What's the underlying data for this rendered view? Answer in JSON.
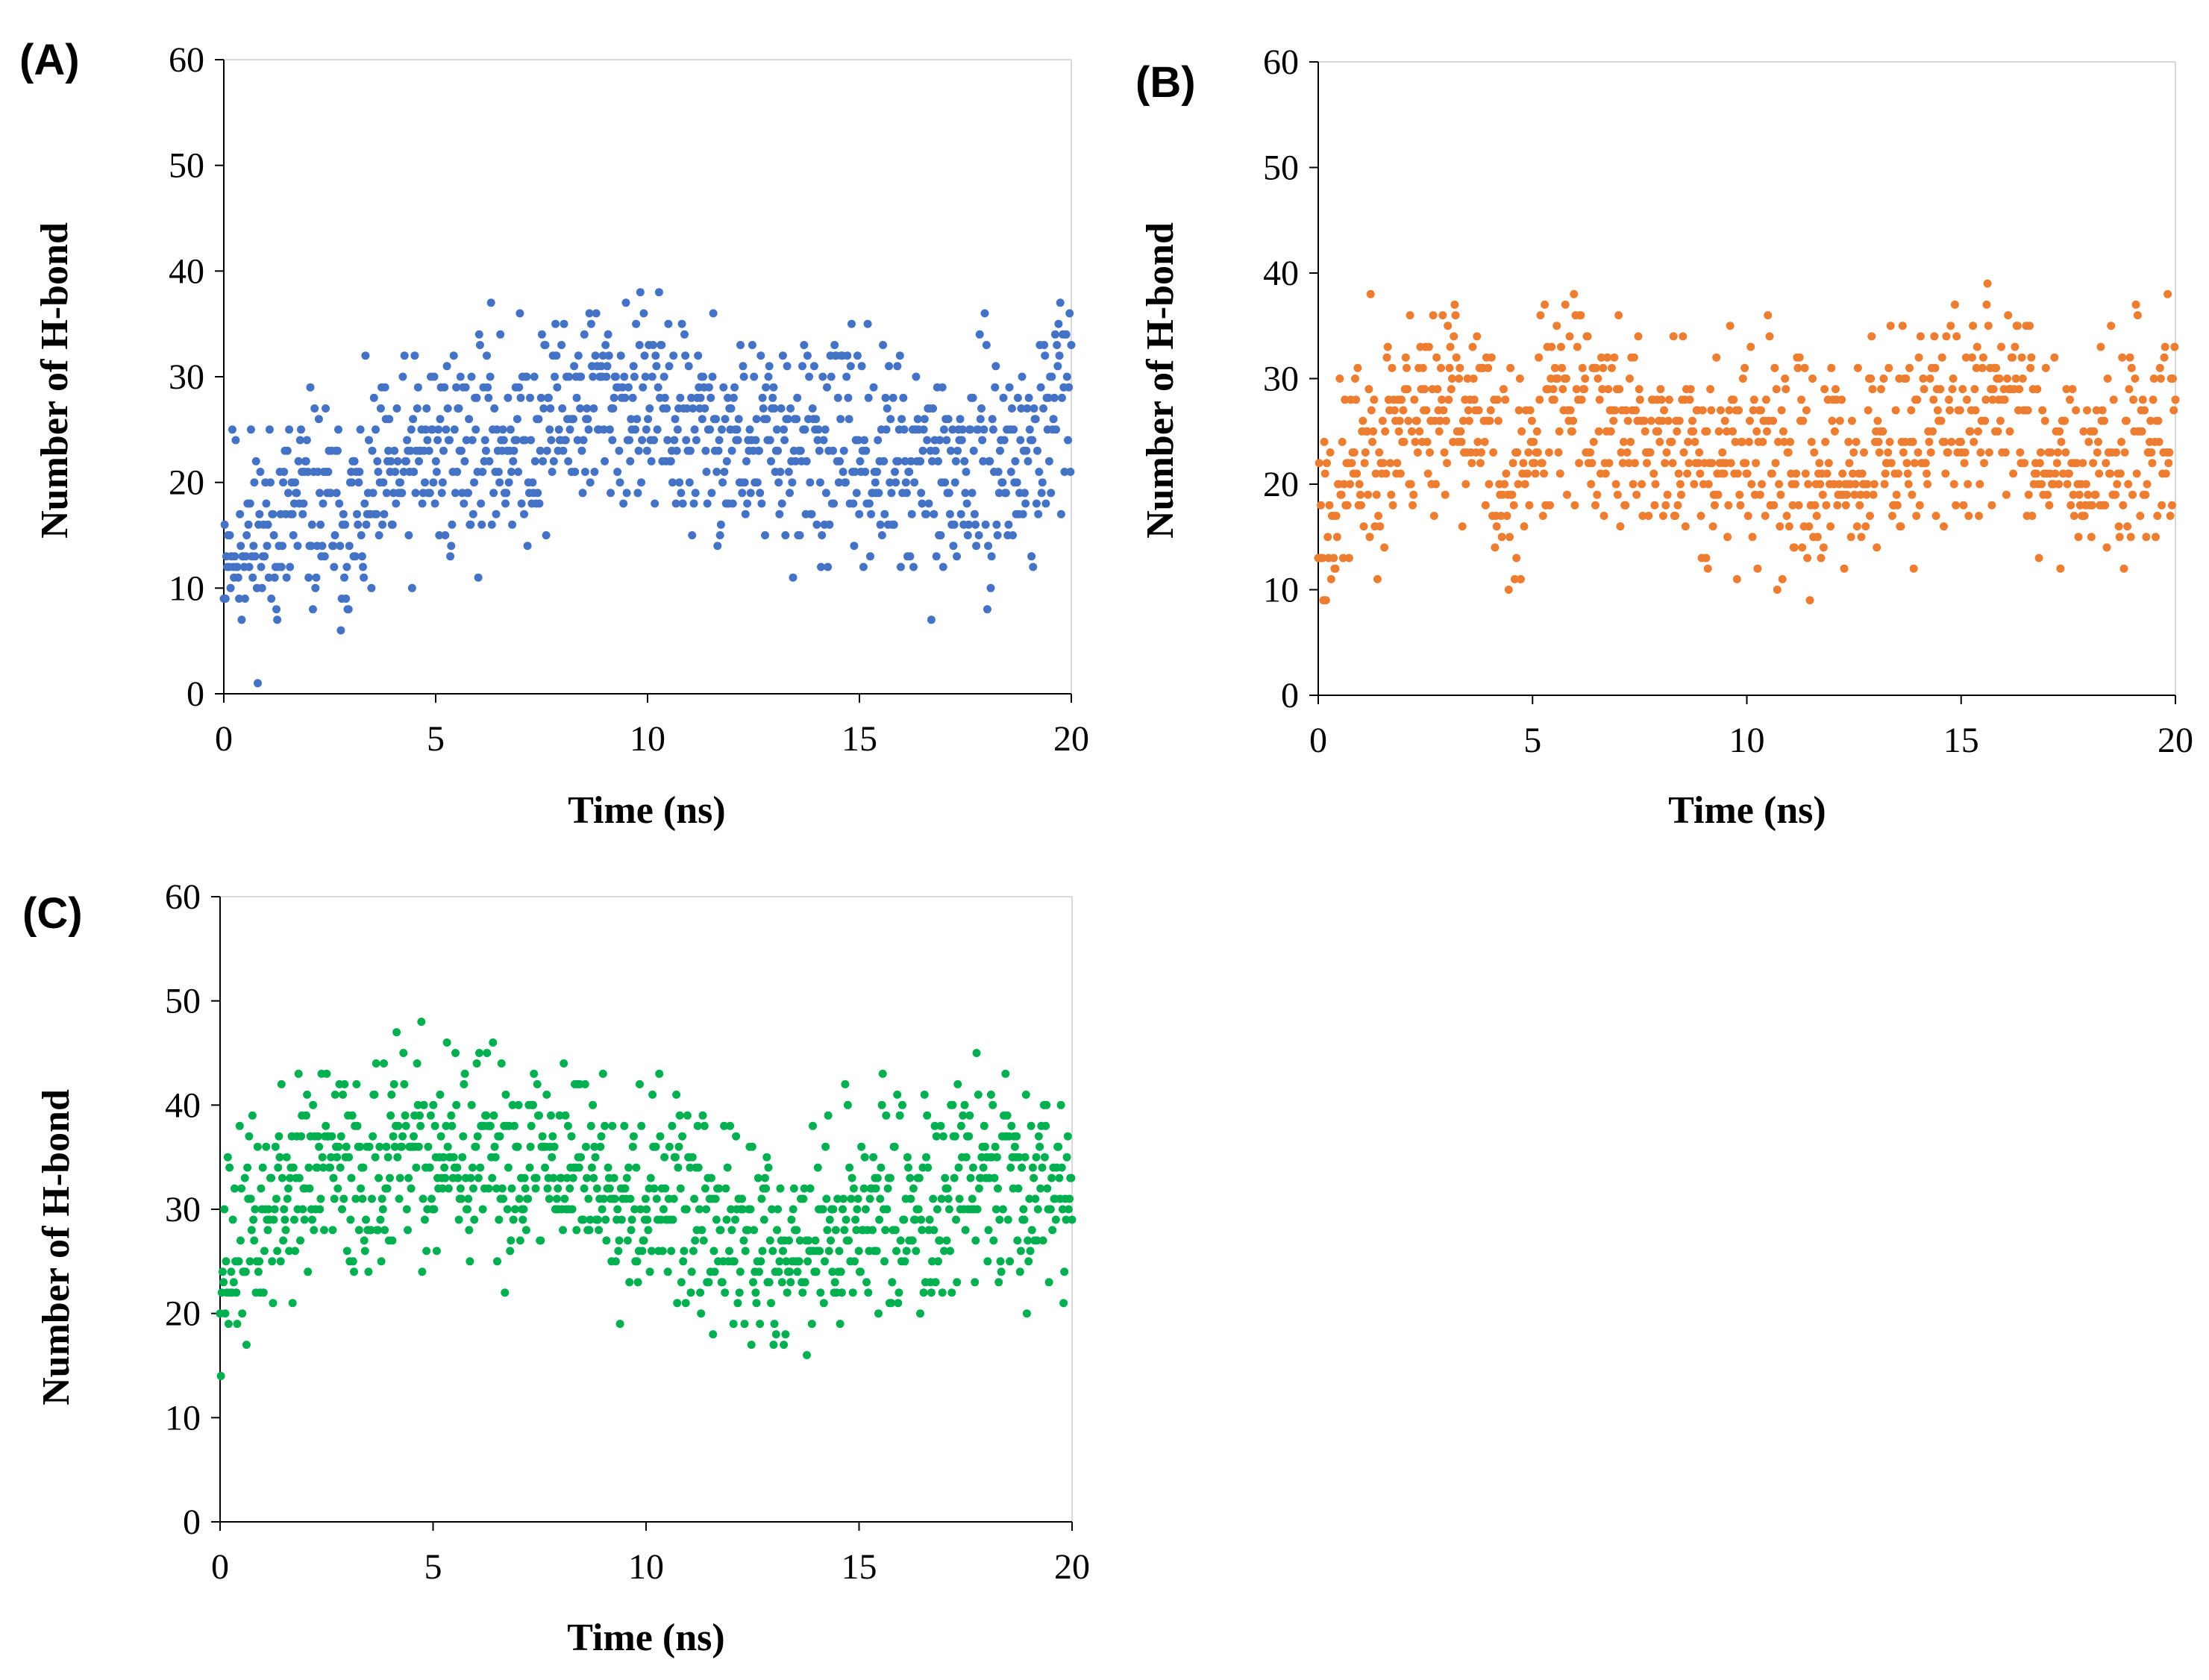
{
  "chart_data": [
    {
      "panel_label": "(A)",
      "type": "scatter",
      "color": "#4472C4",
      "xlabel": "Time (ns)",
      "ylabel": "Number of H-bond",
      "xlim": [
        0,
        20
      ],
      "ylim": [
        0,
        60
      ],
      "xticks": [
        "0",
        "5",
        "10",
        "15",
        "20"
      ],
      "yticks": [
        "0",
        "10",
        "20",
        "30",
        "40",
        "50",
        "60"
      ],
      "trend": [
        [
          0,
          15
        ],
        [
          1,
          15
        ],
        [
          2,
          18
        ],
        [
          3,
          16
        ],
        [
          4,
          20
        ],
        [
          5,
          23
        ],
        [
          6,
          24
        ],
        [
          7,
          24
        ],
        [
          8,
          27
        ],
        [
          9,
          28
        ],
        [
          10,
          27
        ],
        [
          11,
          25
        ],
        [
          12,
          24
        ],
        [
          13,
          23
        ],
        [
          14,
          23
        ],
        [
          15,
          23
        ],
        [
          16,
          21
        ],
        [
          17,
          20
        ],
        [
          18,
          22
        ],
        [
          19,
          22
        ],
        [
          20,
          30
        ]
      ],
      "spread": 5,
      "n_points": 1000,
      "seed": 11
    },
    {
      "panel_label": "(B)",
      "type": "scatter",
      "color": "#ED7D31",
      "xlabel": "Time (ns)",
      "ylabel": "Number of H-bond",
      "xlim": [
        0,
        20
      ],
      "ylim": [
        0,
        60
      ],
      "xticks": [
        "0",
        "5",
        "10",
        "15",
        "20"
      ],
      "yticks": [
        "0",
        "10",
        "20",
        "30",
        "40",
        "50",
        "60"
      ],
      "trend": [
        [
          0,
          16
        ],
        [
          0.5,
          19
        ],
        [
          1,
          23
        ],
        [
          2,
          26
        ],
        [
          3,
          29
        ],
        [
          4,
          24
        ],
        [
          4.5,
          18
        ],
        [
          5,
          25
        ],
        [
          6,
          28
        ],
        [
          7,
          25
        ],
        [
          8,
          24
        ],
        [
          9,
          23
        ],
        [
          10,
          24
        ],
        [
          11,
          21
        ],
        [
          12,
          21
        ],
        [
          13,
          23
        ],
        [
          14,
          25
        ],
        [
          15,
          26
        ],
        [
          16,
          29
        ],
        [
          17,
          24
        ],
        [
          18,
          22
        ],
        [
          19,
          24
        ],
        [
          20,
          27
        ]
      ],
      "spread": 5,
      "n_points": 1000,
      "seed": 23
    },
    {
      "panel_label": "(C)",
      "type": "scatter",
      "color": "#00B050",
      "xlabel": "Time (ns)",
      "ylabel": "Number of H-bond",
      "xlim": [
        0,
        20
      ],
      "ylim": [
        0,
        60
      ],
      "xticks": [
        "0",
        "5",
        "10",
        "15",
        "20"
      ],
      "yticks": [
        "0",
        "10",
        "20",
        "30",
        "40",
        "50",
        "60"
      ],
      "trend": [
        [
          0,
          25
        ],
        [
          1,
          29
        ],
        [
          2,
          33
        ],
        [
          3,
          34
        ],
        [
          4,
          34
        ],
        [
          5,
          35
        ],
        [
          6,
          34
        ],
        [
          7,
          35
        ],
        [
          8,
          35
        ],
        [
          9,
          33
        ],
        [
          10,
          32
        ],
        [
          11,
          30
        ],
        [
          12,
          27
        ],
        [
          13,
          27
        ],
        [
          14,
          27
        ],
        [
          15,
          30
        ],
        [
          16,
          30
        ],
        [
          17,
          31
        ],
        [
          18,
          34
        ],
        [
          19,
          33
        ],
        [
          20,
          33
        ]
      ],
      "spread": 5,
      "n_points": 1000,
      "seed": 37
    }
  ]
}
